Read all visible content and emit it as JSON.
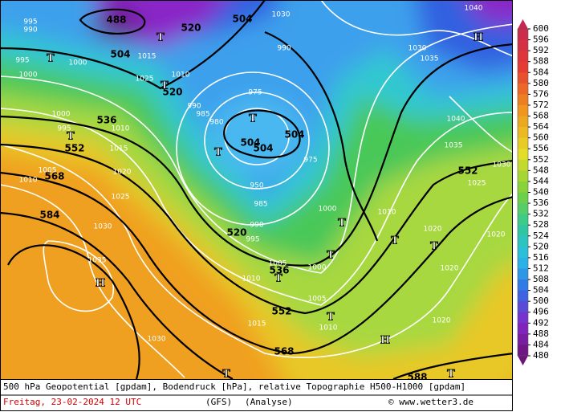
{
  "map": {
    "geopotential_labels": [
      488,
      520,
      504,
      520,
      504,
      536,
      552,
      568,
      584,
      504,
      504,
      504,
      520,
      536,
      552,
      568,
      588,
      552
    ],
    "pressure_labels": [
      995,
      990,
      995,
      1000,
      1000,
      1000,
      995,
      1010,
      1015,
      1020,
      1025,
      1030,
      1035,
      1005,
      1010,
      975,
      990,
      985,
      980,
      975,
      950,
      985,
      990,
      995,
      1005,
      1010,
      1000,
      1005,
      1010,
      1015,
      1030,
      1010,
      1020,
      1020,
      1020,
      1020,
      1030,
      1025,
      1035,
      1040,
      1035,
      1030,
      1040,
      990,
      1030,
      1000,
      1015,
      1025,
      1010
    ],
    "markers": [
      "T",
      "T",
      "T",
      "T",
      "T",
      "T",
      "T",
      "T",
      "T",
      "T",
      "T",
      "T",
      "T",
      "T",
      "H",
      "H",
      "H"
    ]
  },
  "colorbar": {
    "ticks": [
      600,
      596,
      592,
      588,
      584,
      580,
      576,
      572,
      568,
      564,
      560,
      556,
      552,
      548,
      544,
      540,
      536,
      532,
      528,
      524,
      520,
      516,
      512,
      508,
      504,
      500,
      496,
      492,
      488,
      484,
      480
    ]
  },
  "footer": {
    "title": "500 hPa Geopotential [gpdam], Bodendruck [hPa], relative Topographie H500-H1000 [gpdam]",
    "date": "Freitag, 23-02-2024  12 UTC",
    "model": "(GFS)",
    "run": "(Analyse)",
    "source": "© www.wetter3.de"
  }
}
